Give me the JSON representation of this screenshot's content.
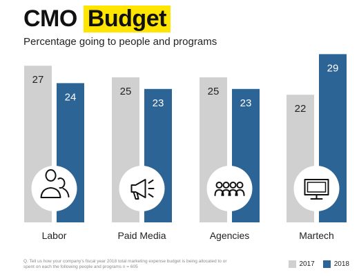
{
  "title": {
    "part1": "CMO",
    "part2": "Budget"
  },
  "subtitle": "Percentage going to people and programs",
  "colors": {
    "y2017": "#d0d0d0",
    "y2018": "#2c6496",
    "highlight": "#ffe500"
  },
  "chart_data": {
    "type": "bar",
    "categories": [
      "Labor",
      "Paid Media",
      "Agencies",
      "Martech"
    ],
    "category_icons": [
      "people-icon",
      "megaphone-icon",
      "team-icon",
      "monitor-icon"
    ],
    "series": [
      {
        "name": "2017",
        "values": [
          27,
          25,
          25,
          22
        ]
      },
      {
        "name": "2018",
        "values": [
          24,
          23,
          23,
          29
        ]
      }
    ],
    "title": "CMO Budget",
    "subtitle": "Percentage going to people and programs",
    "legend_position": "bottom-right",
    "grid": false
  },
  "footnote": "Q. Tell us how your company's fiscal year 2018 total marketing expense budget is being allocated to or spent on each the following people and programs n = 605",
  "legend": {
    "y2017": "2017",
    "y2018": "2018"
  }
}
